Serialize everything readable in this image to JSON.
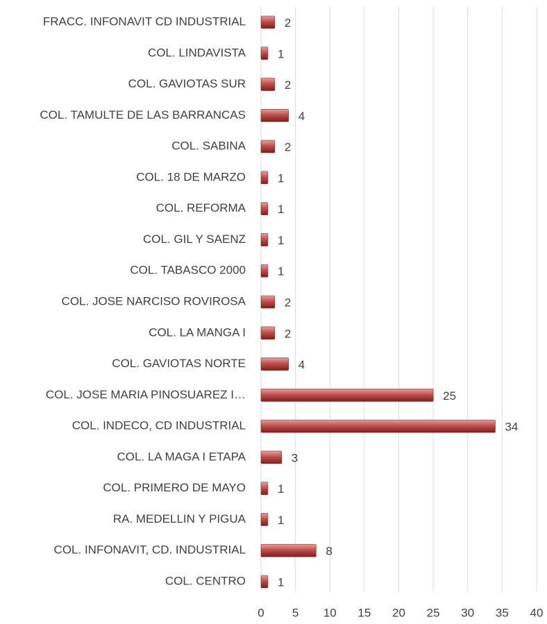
{
  "chart_data": {
    "type": "bar",
    "orientation": "horizontal",
    "categories": [
      "FRACC. INFONAVIT CD INDUSTRIAL",
      "COL. LINDAVISTA",
      "COL. GAVIOTAS SUR",
      "COL. TAMULTE DE LAS BARRANCAS",
      "COL. SABINA",
      "COL. 18 DE MARZO",
      "COL. REFORMA",
      "COL. GIL Y SAENZ",
      "COL. TABASCO 2000",
      "COL. JOSE NARCISO ROVIROSA",
      "COL. LA MANGA I",
      "COL. GAVIOTAS NORTE",
      "COL. JOSE MARIA PINOSUAREZ I…",
      "COL. INDECO, CD INDUSTRIAL",
      "COL. LA MAGA I ETAPA",
      "COL. PRIMERO DE MAYO",
      "RA. MEDELLIN Y PIGUA",
      "COL. INFONAVIT, CD. INDUSTRIAL",
      "COL. CENTRO"
    ],
    "values": [
      2,
      1,
      2,
      4,
      2,
      1,
      1,
      1,
      1,
      2,
      2,
      4,
      25,
      34,
      3,
      1,
      1,
      8,
      1
    ],
    "color": "#c0504d",
    "xlim": [
      0,
      40
    ],
    "xticks": [
      0,
      5,
      10,
      15,
      20,
      25,
      30,
      35,
      40
    ],
    "grid": true
  }
}
